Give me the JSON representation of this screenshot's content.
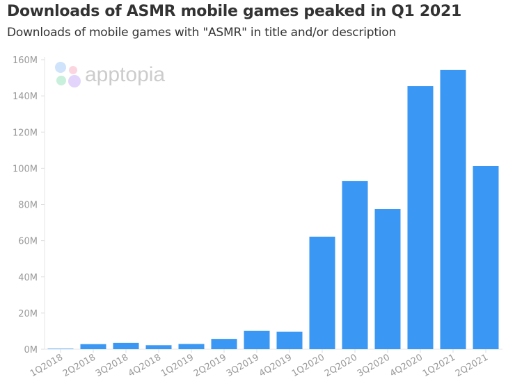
{
  "chart_data": {
    "type": "bar",
    "title": "Downloads of ASMR mobile games peaked in Q1 2021",
    "subtitle": "Downloads of mobile games with \"ASMR\" in title and/or description",
    "watermark": "apptopia",
    "categories": [
      "1Q2018",
      "2Q2018",
      "3Q2018",
      "4Q2018",
      "1Q2019",
      "2Q2019",
      "3Q2019",
      "4Q2019",
      "1Q2020",
      "2Q2020",
      "3Q2020",
      "4Q2020",
      "1Q2021",
      "2Q2021"
    ],
    "values": [
      0.3,
      2.8,
      3.5,
      2.2,
      2.9,
      5.7,
      10.1,
      9.7,
      62.2,
      92.9,
      77.5,
      145.4,
      154.3,
      101.3
    ],
    "unit": "M",
    "ylim": [
      0,
      160
    ],
    "yticks": [
      0,
      20,
      40,
      60,
      80,
      100,
      120,
      140,
      160
    ],
    "ytick_labels": [
      "0M",
      "20M",
      "40M",
      "60M",
      "80M",
      "100M",
      "120M",
      "140M",
      "160M"
    ],
    "xlabel": "",
    "ylabel": "",
    "grid": false,
    "bar_color": "#3a97f3"
  }
}
